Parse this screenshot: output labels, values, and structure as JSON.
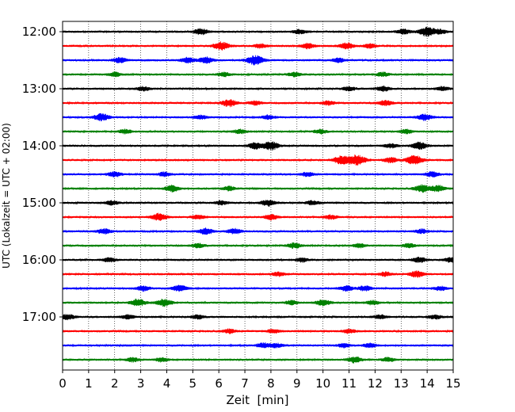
{
  "chart_data": {
    "type": "line",
    "title": "",
    "xlabel": "Zeit  [min]",
    "ylabel": "UTC (Lokalzeit = UTC + 02:00)",
    "xlim": [
      0,
      15
    ],
    "x_ticks": [
      0,
      1,
      2,
      3,
      4,
      5,
      6,
      7,
      8,
      9,
      10,
      11,
      12,
      13,
      14,
      15
    ],
    "x_tick_labels": [
      "0",
      "1",
      "2",
      "3",
      "4",
      "5",
      "6",
      "7",
      "8",
      "9",
      "10",
      "11",
      "12",
      "13",
      "14",
      "15"
    ],
    "y_tick_labels": [
      "12:00",
      "13:00",
      "14:00",
      "15:00",
      "16:00",
      "17:00"
    ],
    "y_tick_traces": [
      0,
      4,
      8,
      12,
      16,
      20
    ],
    "trace_interval_min": 15,
    "vertical_grid": "dotted",
    "color_cycle": [
      "#000000",
      "#ff0000",
      "#0000ff",
      "#008000"
    ],
    "traces": [
      {
        "start": "12:00",
        "bursts": [
          [
            5.3,
            0.6
          ],
          [
            9.1,
            0.4
          ],
          [
            13.1,
            0.5
          ],
          [
            14.0,
            0.9
          ],
          [
            14.5,
            0.4
          ]
        ]
      },
      {
        "start": "12:15",
        "bursts": [
          [
            6.1,
            0.8
          ],
          [
            7.6,
            0.4
          ],
          [
            9.4,
            0.5
          ],
          [
            10.9,
            0.6
          ],
          [
            11.8,
            0.4
          ]
        ]
      },
      {
        "start": "12:30",
        "bursts": [
          [
            2.2,
            0.5
          ],
          [
            4.8,
            0.5
          ],
          [
            5.5,
            0.6
          ],
          [
            7.4,
            0.9
          ],
          [
            10.6,
            0.4
          ]
        ]
      },
      {
        "start": "12:45",
        "bursts": [
          [
            2.0,
            0.4
          ],
          [
            6.2,
            0.4
          ],
          [
            8.9,
            0.4
          ],
          [
            12.3,
            0.4
          ]
        ]
      },
      {
        "start": "13:00",
        "bursts": [
          [
            3.1,
            0.4
          ],
          [
            11.0,
            0.4
          ],
          [
            12.3,
            0.5
          ],
          [
            14.6,
            0.4
          ]
        ]
      },
      {
        "start": "13:15",
        "bursts": [
          [
            6.4,
            0.7
          ],
          [
            7.4,
            0.4
          ],
          [
            10.2,
            0.4
          ],
          [
            12.4,
            0.5
          ]
        ]
      },
      {
        "start": "13:30",
        "bursts": [
          [
            1.5,
            0.7
          ],
          [
            5.3,
            0.4
          ],
          [
            7.9,
            0.4
          ],
          [
            13.9,
            0.6
          ]
        ]
      },
      {
        "start": "13:45",
        "bursts": [
          [
            2.4,
            0.4
          ],
          [
            6.8,
            0.4
          ],
          [
            9.9,
            0.4
          ],
          [
            13.2,
            0.4
          ]
        ]
      },
      {
        "start": "14:00",
        "bursts": [
          [
            7.4,
            0.6
          ],
          [
            8.0,
            0.8
          ],
          [
            12.6,
            0.4
          ],
          [
            13.7,
            0.7
          ]
        ]
      },
      {
        "start": "14:15",
        "bursts": [
          [
            10.7,
            0.8
          ],
          [
            11.3,
            1.0
          ],
          [
            13.5,
            0.9
          ],
          [
            12.6,
            0.5
          ]
        ]
      },
      {
        "start": "14:30",
        "bursts": [
          [
            2.0,
            0.5
          ],
          [
            3.9,
            0.4
          ],
          [
            9.4,
            0.4
          ],
          [
            14.2,
            0.5
          ]
        ]
      },
      {
        "start": "14:45",
        "bursts": [
          [
            4.2,
            0.6
          ],
          [
            6.4,
            0.4
          ],
          [
            13.8,
            0.7
          ],
          [
            14.4,
            0.6
          ]
        ]
      },
      {
        "start": "15:00",
        "bursts": [
          [
            1.9,
            0.4
          ],
          [
            6.1,
            0.4
          ],
          [
            7.9,
            0.6
          ],
          [
            9.6,
            0.4
          ]
        ]
      },
      {
        "start": "15:15",
        "bursts": [
          [
            3.7,
            0.7
          ],
          [
            5.2,
            0.4
          ],
          [
            8.0,
            0.5
          ],
          [
            10.3,
            0.4
          ]
        ]
      },
      {
        "start": "15:30",
        "bursts": [
          [
            1.6,
            0.5
          ],
          [
            5.5,
            0.6
          ],
          [
            6.6,
            0.5
          ],
          [
            13.8,
            0.4
          ]
        ]
      },
      {
        "start": "15:45",
        "bursts": [
          [
            5.2,
            0.4
          ],
          [
            8.9,
            0.5
          ],
          [
            11.4,
            0.4
          ],
          [
            13.3,
            0.4
          ]
        ]
      },
      {
        "start": "16:00",
        "bursts": [
          [
            1.8,
            0.4
          ],
          [
            9.2,
            0.4
          ],
          [
            13.7,
            0.5
          ],
          [
            14.9,
            0.4
          ]
        ]
      },
      {
        "start": "16:15",
        "bursts": [
          [
            8.3,
            0.4
          ],
          [
            12.4,
            0.4
          ],
          [
            13.6,
            0.6
          ]
        ]
      },
      {
        "start": "16:30",
        "bursts": [
          [
            3.1,
            0.5
          ],
          [
            4.5,
            0.6
          ],
          [
            10.9,
            0.5
          ],
          [
            11.6,
            0.5
          ],
          [
            14.5,
            0.4
          ]
        ]
      },
      {
        "start": "16:45",
        "bursts": [
          [
            2.9,
            0.7
          ],
          [
            3.9,
            0.7
          ],
          [
            8.8,
            0.4
          ],
          [
            10.0,
            0.6
          ],
          [
            11.9,
            0.4
          ]
        ]
      },
      {
        "start": "17:00",
        "bursts": [
          [
            0.2,
            0.5
          ],
          [
            2.5,
            0.4
          ],
          [
            5.2,
            0.4
          ],
          [
            12.2,
            0.4
          ],
          [
            14.3,
            0.4
          ]
        ]
      },
      {
        "start": "17:15",
        "bursts": [
          [
            6.4,
            0.4
          ],
          [
            8.1,
            0.4
          ],
          [
            11.0,
            0.4
          ]
        ]
      },
      {
        "start": "17:30",
        "bursts": [
          [
            7.7,
            0.5
          ],
          [
            8.2,
            0.4
          ],
          [
            10.8,
            0.4
          ],
          [
            11.8,
            0.4
          ]
        ]
      },
      {
        "start": "17:45",
        "bursts": [
          [
            2.7,
            0.4
          ],
          [
            3.8,
            0.4
          ],
          [
            11.2,
            0.6
          ],
          [
            12.5,
            0.4
          ]
        ]
      }
    ]
  }
}
